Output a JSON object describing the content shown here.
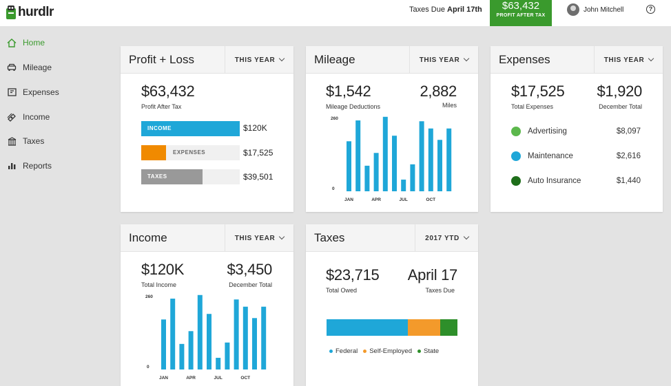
{
  "app": {
    "name": "hurdlr"
  },
  "topbar": {
    "taxes_due_label": "Taxes Due",
    "taxes_due_date": "April 17th",
    "profit_value": "$63,432",
    "profit_label": "PROFIT AFTER TAX",
    "user_name": "John Mitchell",
    "help": "?"
  },
  "sidebar": {
    "items": [
      {
        "label": "Home",
        "icon": "home-icon",
        "active": true
      },
      {
        "label": "Mileage",
        "icon": "car-icon"
      },
      {
        "label": "Expenses",
        "icon": "receipt-icon"
      },
      {
        "label": "Income",
        "icon": "money-icon"
      },
      {
        "label": "Taxes",
        "icon": "building-icon"
      },
      {
        "label": "Reports",
        "icon": "bar-chart-icon"
      }
    ]
  },
  "profit_loss": {
    "title": "Profit + Loss",
    "period": "THIS YEAR",
    "amount": "$63,432",
    "amount_label": "Profit After Tax",
    "rows": [
      {
        "label": "INCOME",
        "value": "$120K",
        "fill": 1.0,
        "color": "#1fa7d8"
      },
      {
        "label": "EXPENSES",
        "value": "$17,525",
        "fill": 0.25,
        "color": "#f08a00"
      },
      {
        "label": "TAXES",
        "value": "$39,501",
        "fill": 0.62,
        "color": "#999999"
      }
    ]
  },
  "mileage": {
    "title": "Mileage",
    "period": "THIS YEAR",
    "amount": "$1,542",
    "amount_label": "Mileage Deductions",
    "miles": "2,882",
    "miles_label": "Miles"
  },
  "expenses": {
    "title": "Expenses",
    "period": "THIS YEAR",
    "total": "$17,525",
    "total_label": "Total Expenses",
    "december": "$1,920",
    "december_label": "December Total",
    "items": [
      {
        "name": "Advertising",
        "value": "$8,097",
        "color": "#5cb84c"
      },
      {
        "name": "Maintenance",
        "value": "$2,616",
        "color": "#1fa7d8"
      },
      {
        "name": "Auto Insurance",
        "value": "$1,440",
        "color": "#1e6e1a"
      }
    ]
  },
  "income": {
    "title": "Income",
    "period": "THIS YEAR",
    "total": "$120K",
    "total_label": "Total Income",
    "december": "$3,450",
    "december_label": "December Total"
  },
  "taxes": {
    "title": "Taxes",
    "period": "2017 YTD",
    "owed": "$23,715",
    "owed_label": "Total Owed",
    "due": "April 17",
    "due_label": "Taxes Due",
    "legend": [
      "Federal",
      "Self-Employed",
      "State"
    ],
    "shares": [
      0.62,
      0.25,
      0.13
    ],
    "colors": [
      "#1fa7d8",
      "#f39a2b",
      "#2e8f2a"
    ]
  },
  "chart_data": [
    {
      "type": "bar",
      "name": "mileage",
      "ylim": [
        0,
        260
      ],
      "y_ticks": [
        "260",
        "0"
      ],
      "x_tick_labels": [
        "JAN",
        "APR",
        "JUL",
        "OCT"
      ],
      "x_tick_positions": [
        0,
        3,
        6,
        9
      ],
      "values": [
        180,
        255,
        92,
        138,
        268,
        200,
        42,
        97,
        252,
        226,
        185,
        226
      ],
      "color": "#1fa7d8"
    },
    {
      "type": "bar",
      "name": "income",
      "ylim": [
        0,
        260
      ],
      "y_ticks": [
        "260",
        "0"
      ],
      "x_tick_labels": [
        "JAN",
        "APR",
        "JUL",
        "OCT"
      ],
      "x_tick_positions": [
        0,
        3,
        6,
        9
      ],
      "values": [
        180,
        255,
        92,
        138,
        268,
        200,
        42,
        97,
        252,
        226,
        185,
        226
      ],
      "color": "#1fa7d8"
    }
  ]
}
